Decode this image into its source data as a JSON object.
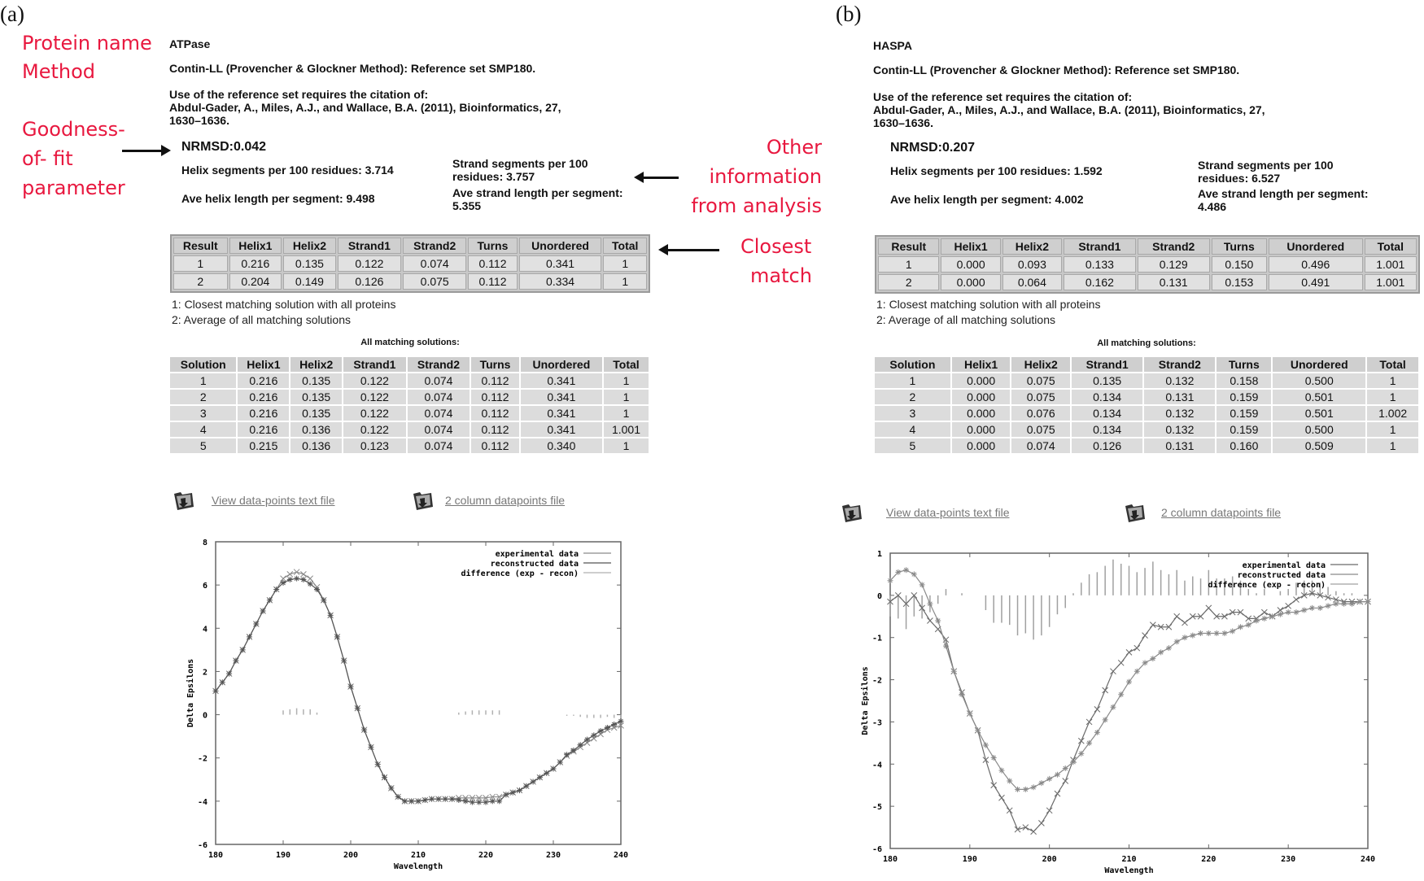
{
  "annotations": {
    "protein_name": "Protein name",
    "method": "Method",
    "goodness": [
      "Goodness-",
      "of- fit",
      "parameter"
    ],
    "other_info": [
      "Other",
      "information",
      "from analysis"
    ],
    "closest_match": [
      "Closest",
      "match"
    ],
    "color": "#e8183f"
  },
  "panels": [
    {
      "label": "(a)",
      "protein": "ATPase",
      "method": "Contin-LL (Provencher & Glockner Method):   Reference set SMP180.",
      "citation": [
        "Use of the reference set requires the citation of:",
        "Abdul-Gader, A., Miles, A.J., and Wallace, B.A. (2011), Bioinformatics, 27,",
        "1630–1636."
      ],
      "nrmsd": "NRMSD:0.042",
      "helix_segments": "Helix segments per 100 residues: 3.714",
      "helix_length": "Ave helix length per segment: 9.498",
      "strand_segments": [
        "Strand segments per 100",
        "residues: 3.757"
      ],
      "strand_length": [
        "Ave strand length per segment:",
        "5.355"
      ],
      "results_headers": [
        "Result",
        "Helix1",
        "Helix2",
        "Strand1",
        "Strand2",
        "Turns",
        "Unordered",
        "Total"
      ],
      "results_rows": [
        [
          "1",
          "0.216",
          "0.135",
          "0.122",
          "0.074",
          "0.112",
          "0.341",
          "1"
        ],
        [
          "2",
          "0.204",
          "0.149",
          "0.126",
          "0.075",
          "0.112",
          "0.334",
          "1"
        ]
      ],
      "notes": [
        "1: Closest matching solution with all proteins",
        "2: Average of all matching solutions"
      ],
      "solutions_caption": "All matching solutions:",
      "solutions_headers": [
        "Solution",
        "Helix1",
        "Helix2",
        "Strand1",
        "Strand2",
        "Turns",
        "Unordered",
        "Total"
      ],
      "solutions_rows": [
        [
          "1",
          "0.216",
          "0.135",
          "0.122",
          "0.074",
          "0.112",
          "0.341",
          "1"
        ],
        [
          "2",
          "0.216",
          "0.135",
          "0.122",
          "0.074",
          "0.112",
          "0.341",
          "1"
        ],
        [
          "3",
          "0.216",
          "0.135",
          "0.122",
          "0.074",
          "0.112",
          "0.341",
          "1"
        ],
        [
          "4",
          "0.216",
          "0.136",
          "0.122",
          "0.074",
          "0.112",
          "0.341",
          "1.001"
        ],
        [
          "5",
          "0.215",
          "0.136",
          "0.123",
          "0.074",
          "0.112",
          "0.340",
          "1"
        ]
      ],
      "links": [
        "View data-points text file",
        "2 column datapoints file"
      ],
      "link_icon": "folder-download-icon"
    },
    {
      "label": "(b)",
      "protein": "HASPA",
      "method": "Contin-LL (Provencher & Glockner Method):   Reference set SMP180.",
      "citation": [
        "Use of the reference set requires the citation of:",
        "Abdul-Gader, A., Miles, A.J., and Wallace, B.A. (2011), Bioinformatics, 27,",
        "1630–1636."
      ],
      "nrmsd": "NRMSD:0.207",
      "helix_segments": "Helix segments per 100 residues: 1.592",
      "helix_length": "Ave helix length per segment: 4.002",
      "strand_segments": [
        "Strand segments per 100",
        "residues: 6.527"
      ],
      "strand_length": [
        "Ave strand length per segment:",
        "4.486"
      ],
      "results_headers": [
        "Result",
        "Helix1",
        "Helix2",
        "Strand1",
        "Strand2",
        "Turns",
        "Unordered",
        "Total"
      ],
      "results_rows": [
        [
          "1",
          "0.000",
          "0.093",
          "0.133",
          "0.129",
          "0.150",
          "0.496",
          "1.001"
        ],
        [
          "2",
          "0.000",
          "0.064",
          "0.162",
          "0.131",
          "0.153",
          "0.491",
          "1.001"
        ]
      ],
      "notes": [
        "1: Closest matching solution with all proteins",
        "2: Average of all matching solutions"
      ],
      "solutions_caption": "All matching solutions:",
      "solutions_headers": [
        "Solution",
        "Helix1",
        "Helix2",
        "Strand1",
        "Strand2",
        "Turns",
        "Unordered",
        "Total"
      ],
      "solutions_rows": [
        [
          "1",
          "0.000",
          "0.075",
          "0.135",
          "0.132",
          "0.158",
          "0.500",
          "1"
        ],
        [
          "2",
          "0.000",
          "0.075",
          "0.134",
          "0.131",
          "0.159",
          "0.501",
          "1"
        ],
        [
          "3",
          "0.000",
          "0.076",
          "0.134",
          "0.132",
          "0.159",
          "0.501",
          "1.002"
        ],
        [
          "4",
          "0.000",
          "0.075",
          "0.134",
          "0.132",
          "0.159",
          "0.500",
          "1"
        ],
        [
          "5",
          "0.000",
          "0.074",
          "0.126",
          "0.131",
          "0.160",
          "0.509",
          "1"
        ]
      ],
      "links": [
        "View data-points text file",
        "2 column datapoints file"
      ],
      "link_icon": "folder-download-icon"
    }
  ],
  "chart_data": [
    {
      "type": "line",
      "xlabel": "Wavelength",
      "ylabel": "Delta Epsilons",
      "xlim": [
        180,
        240
      ],
      "ylim": [
        -6,
        8
      ],
      "xticks": [
        180,
        190,
        200,
        210,
        220,
        230,
        240
      ],
      "yticks": [
        -6,
        -4,
        -2,
        0,
        2,
        4,
        6,
        8
      ],
      "grid": false,
      "legend": "top-right",
      "x_start": 180,
      "x_step": 1,
      "series": [
        {
          "name": "experimental data",
          "marker": "x",
          "color": "#8a8a8a",
          "values": [
            1.1,
            1.5,
            1.9,
            2.5,
            3.0,
            3.6,
            4.2,
            4.8,
            5.3,
            5.8,
            6.3,
            6.5,
            6.6,
            6.5,
            6.3,
            5.9,
            5.3,
            4.6,
            3.6,
            2.5,
            1.3,
            0.3,
            -0.7,
            -1.5,
            -2.3,
            -2.9,
            -3.4,
            -3.8,
            -4.0,
            -4.0,
            -4.0,
            -3.95,
            -3.9,
            -3.9,
            -3.9,
            -3.9,
            -3.85,
            -3.85,
            -3.85,
            -3.85,
            -3.85,
            -3.8,
            -3.8,
            -3.7,
            -3.6,
            -3.5,
            -3.3,
            -3.1,
            -2.9,
            -2.7,
            -2.5,
            -2.2,
            -1.9,
            -1.7,
            -1.5,
            -1.3,
            -1.1,
            -0.9,
            -0.7,
            -0.6,
            -0.5
          ]
        },
        {
          "name": "reconstructed data",
          "marker": "*",
          "color": "#555555",
          "values": [
            1.1,
            1.5,
            1.9,
            2.5,
            3.0,
            3.6,
            4.2,
            4.8,
            5.3,
            5.8,
            6.1,
            6.25,
            6.3,
            6.25,
            6.05,
            5.8,
            5.3,
            4.6,
            3.6,
            2.5,
            1.3,
            0.3,
            -0.7,
            -1.5,
            -2.3,
            -2.9,
            -3.4,
            -3.8,
            -4.0,
            -4.0,
            -4.0,
            -3.95,
            -3.9,
            -3.9,
            -3.9,
            -3.9,
            -3.95,
            -4.0,
            -4.05,
            -4.05,
            -4.05,
            -4.0,
            -4.0,
            -3.7,
            -3.6,
            -3.5,
            -3.3,
            -3.1,
            -2.9,
            -2.7,
            -2.5,
            -2.2,
            -1.85,
            -1.65,
            -1.4,
            -1.15,
            -0.95,
            -0.75,
            -0.6,
            -0.45,
            -0.3
          ]
        },
        {
          "name": "difference (exp - recon)",
          "marker": "impulse",
          "color": "#b0b0b0",
          "values": [
            0,
            0,
            0,
            0,
            0,
            0,
            0,
            0,
            0,
            0,
            0.2,
            0.25,
            0.3,
            0.25,
            0.25,
            0.1,
            0,
            0,
            0,
            0,
            0,
            0,
            0,
            0,
            0,
            0,
            0,
            0,
            0,
            0,
            0,
            0,
            0,
            0,
            0,
            0,
            0.1,
            0.15,
            0.2,
            0.2,
            0.2,
            0.2,
            0.2,
            0,
            0,
            0,
            0,
            0,
            0,
            0,
            0,
            0,
            -0.05,
            -0.05,
            -0.1,
            -0.15,
            -0.15,
            -0.15,
            -0.1,
            -0.15,
            -0.2
          ]
        }
      ]
    },
    {
      "type": "line",
      "xlabel": "Wavelength",
      "ylabel": "Delta Epsilons",
      "xlim": [
        180,
        240
      ],
      "ylim": [
        -6,
        1
      ],
      "xticks": [
        180,
        190,
        200,
        210,
        220,
        230,
        240
      ],
      "yticks": [
        -6,
        -5,
        -4,
        -3,
        -2,
        -1,
        0,
        1
      ],
      "grid": false,
      "legend": "top-right",
      "x_start": 180,
      "x_step": 1,
      "series": [
        {
          "name": "experimental data",
          "marker": "x",
          "color": "#6a6a6a",
          "values": [
            -0.15,
            0.0,
            -0.2,
            0.0,
            -0.3,
            -0.6,
            -0.8,
            -1.05,
            -1.8,
            -2.3,
            -2.8,
            -3.2,
            -3.9,
            -4.5,
            -4.8,
            -5.1,
            -5.55,
            -5.5,
            -5.6,
            -5.4,
            -5.1,
            -4.7,
            -4.4,
            -3.9,
            -3.45,
            -3.0,
            -2.7,
            -2.25,
            -1.8,
            -1.6,
            -1.35,
            -1.25,
            -0.95,
            -0.7,
            -0.75,
            -0.75,
            -0.5,
            -0.65,
            -0.5,
            -0.5,
            -0.3,
            -0.5,
            -0.5,
            -0.4,
            -0.4,
            -0.55,
            -0.55,
            -0.4,
            -0.5,
            -0.35,
            -0.25,
            -0.1,
            0.0,
            0.05,
            0.0,
            -0.05,
            -0.1,
            -0.15,
            -0.15,
            -0.15,
            -0.15
          ]
        },
        {
          "name": "reconstructed data",
          "marker": "*",
          "color": "#8a8a8a",
          "values": [
            0.35,
            0.55,
            0.6,
            0.5,
            0.25,
            -0.2,
            -0.6,
            -1.2,
            -1.8,
            -2.35,
            -2.8,
            -3.2,
            -3.55,
            -3.85,
            -4.15,
            -4.4,
            -4.6,
            -4.6,
            -4.55,
            -4.45,
            -4.35,
            -4.25,
            -4.1,
            -3.95,
            -3.75,
            -3.5,
            -3.25,
            -2.95,
            -2.65,
            -2.35,
            -2.05,
            -1.8,
            -1.6,
            -1.5,
            -1.35,
            -1.25,
            -1.1,
            -1.0,
            -0.95,
            -0.9,
            -0.9,
            -0.9,
            -0.9,
            -0.85,
            -0.75,
            -0.7,
            -0.6,
            -0.55,
            -0.5,
            -0.45,
            -0.4,
            -0.4,
            -0.35,
            -0.3,
            -0.3,
            -0.25,
            -0.2,
            -0.2,
            -0.2,
            -0.15,
            -0.15
          ]
        },
        {
          "name": "difference (exp - recon)",
          "marker": "impulse",
          "color": "#a0a0a0",
          "values": [
            -0.5,
            -0.55,
            -0.8,
            -0.5,
            -0.55,
            -0.4,
            -0.2,
            0.15,
            0,
            0.05,
            0,
            0,
            -0.35,
            -0.65,
            -0.65,
            -0.7,
            -0.95,
            -0.9,
            -1.05,
            -0.95,
            -0.75,
            -0.45,
            -0.3,
            0.05,
            0.3,
            0.5,
            0.55,
            0.7,
            0.85,
            0.75,
            0.7,
            0.55,
            0.65,
            0.8,
            0.6,
            0.5,
            0.6,
            0.35,
            0.45,
            0.4,
            0.6,
            0.4,
            0.4,
            0.45,
            0.35,
            0.15,
            0.05,
            0.15,
            0,
            0.1,
            0.15,
            0.3,
            0.35,
            0.35,
            0.3,
            0.2,
            0.1,
            0.05,
            0.05,
            0,
            0
          ]
        }
      ]
    }
  ]
}
